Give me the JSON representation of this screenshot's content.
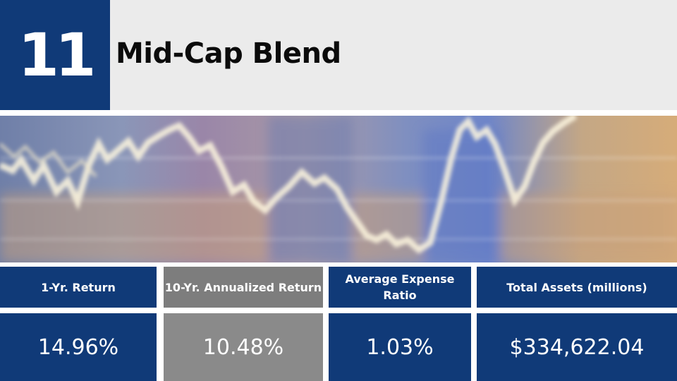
{
  "slide": {
    "rank": "11",
    "title": "Mid-Cap Blend"
  },
  "photo": {
    "description_icon": "stock-chart-photo"
  },
  "stats": {
    "columns": [
      {
        "header": "1-Yr. Return",
        "value": "14.96%"
      },
      {
        "header": "10-Yr. Annualized Return",
        "value": "10.48%"
      },
      {
        "header": "Average Expense Ratio",
        "value": "1.03%"
      },
      {
        "header": "Total Assets (millions)",
        "value": "$334,622.04"
      }
    ]
  },
  "colors": {
    "navy": "#103a78",
    "gray_header": "#7d7d7d",
    "gray_value": "#8a8a8a",
    "title_bg": "#ebebeb"
  }
}
